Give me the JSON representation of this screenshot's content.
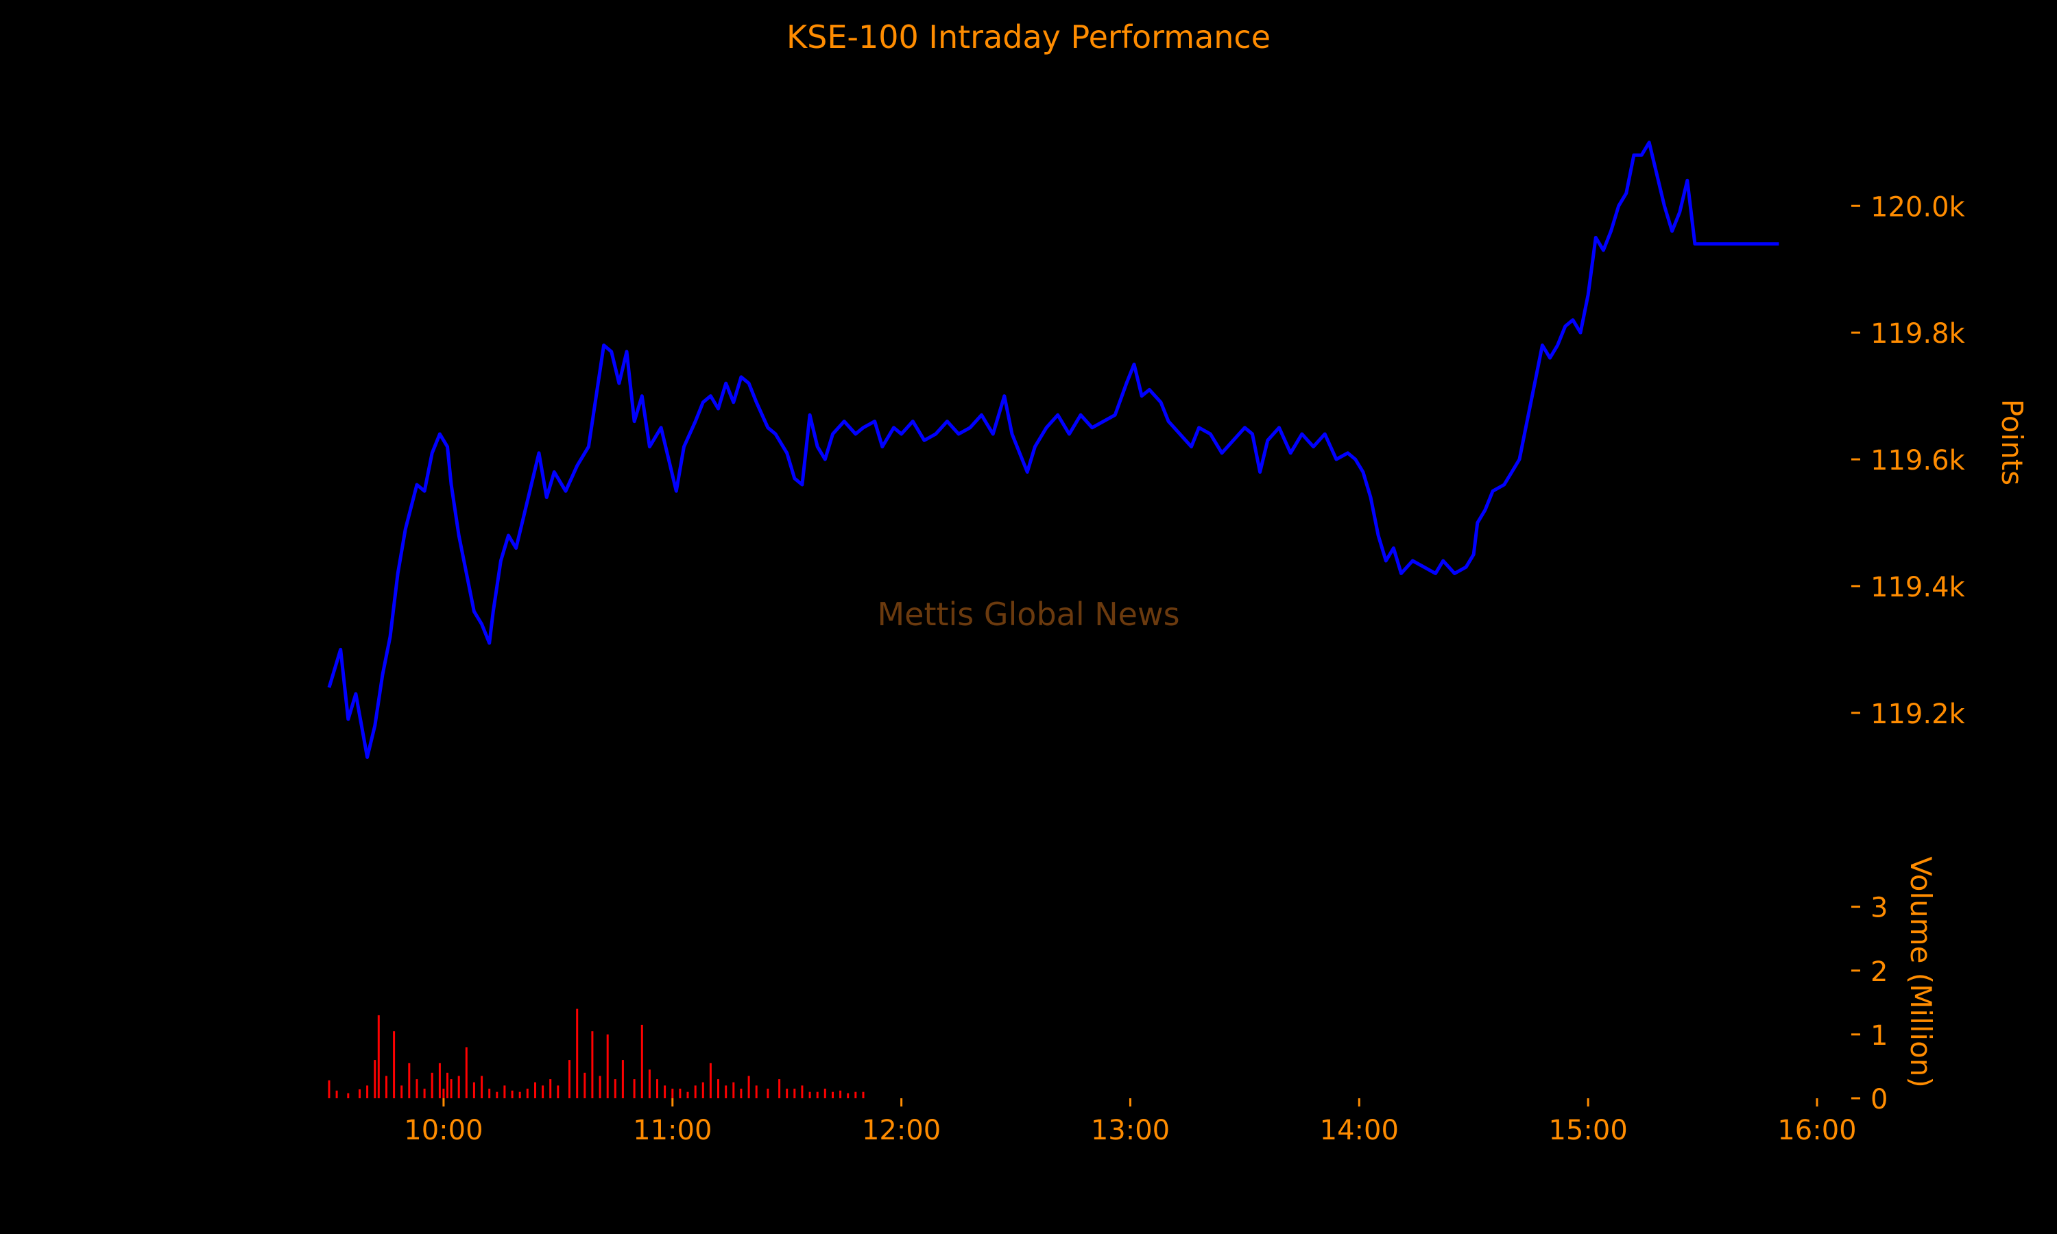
{
  "chart_data": [
    {
      "type": "line",
      "title": "KSE-100 Intraday Performance",
      "watermark": "Mettis Global News",
      "xlabel": "",
      "ylabel": "Points",
      "ylim": [
        119070,
        120195
      ],
      "y_ticks": [
        119200,
        119400,
        119600,
        119800,
        120000
      ],
      "y_tick_labels": [
        "119.2k",
        "119.4k",
        "119.6k",
        "119.8k",
        "120.0k"
      ],
      "y_axis_side": "right",
      "grid": false,
      "series": [
        {
          "color": "#0000FF",
          "points": [
            [
              "09:30",
              119240
            ],
            [
              "09:33",
              119300
            ],
            [
              "09:35",
              119190
            ],
            [
              "09:37",
              119230
            ],
            [
              "09:40",
              119130
            ],
            [
              "09:42",
              119180
            ],
            [
              "09:44",
              119260
            ],
            [
              "09:46",
              119320
            ],
            [
              "09:48",
              119420
            ],
            [
              "09:50",
              119490
            ],
            [
              "09:53",
              119560
            ],
            [
              "09:55",
              119550
            ],
            [
              "09:57",
              119610
            ],
            [
              "09:59",
              119640
            ],
            [
              "10:01",
              119620
            ],
            [
              "10:02",
              119560
            ],
            [
              "10:04",
              119480
            ],
            [
              "10:06",
              119420
            ],
            [
              "10:08",
              119360
            ],
            [
              "10:10",
              119340
            ],
            [
              "10:12",
              119310
            ],
            [
              "10:13",
              119360
            ],
            [
              "10:15",
              119440
            ],
            [
              "10:17",
              119480
            ],
            [
              "10:19",
              119460
            ],
            [
              "10:21",
              119510
            ],
            [
              "10:23",
              119560
            ],
            [
              "10:25",
              119610
            ],
            [
              "10:27",
              119540
            ],
            [
              "10:29",
              119580
            ],
            [
              "10:32",
              119550
            ],
            [
              "10:35",
              119590
            ],
            [
              "10:38",
              119620
            ],
            [
              "10:40",
              119700
            ],
            [
              "10:42",
              119780
            ],
            [
              "10:44",
              119770
            ],
            [
              "10:46",
              119720
            ],
            [
              "10:48",
              119770
            ],
            [
              "10:50",
              119660
            ],
            [
              "10:52",
              119700
            ],
            [
              "10:54",
              119620
            ],
            [
              "10:57",
              119650
            ],
            [
              "10:59",
              119600
            ],
            [
              "11:01",
              119550
            ],
            [
              "11:03",
              119620
            ],
            [
              "11:06",
              119660
            ],
            [
              "11:08",
              119690
            ],
            [
              "11:10",
              119700
            ],
            [
              "11:12",
              119680
            ],
            [
              "11:14",
              119720
            ],
            [
              "11:16",
              119690
            ],
            [
              "11:18",
              119730
            ],
            [
              "11:20",
              119720
            ],
            [
              "11:22",
              119690
            ],
            [
              "11:25",
              119650
            ],
            [
              "11:27",
              119640
            ],
            [
              "11:30",
              119610
            ],
            [
              "11:32",
              119570
            ],
            [
              "11:34",
              119560
            ],
            [
              "11:36",
              119670
            ],
            [
              "11:38",
              119620
            ],
            [
              "11:40",
              119600
            ],
            [
              "11:42",
              119640
            ],
            [
              "11:45",
              119660
            ],
            [
              "11:48",
              119640
            ],
            [
              "11:50",
              119650
            ],
            [
              "11:53",
              119660
            ],
            [
              "11:55",
              119620
            ],
            [
              "11:58",
              119650
            ],
            [
              "12:00",
              119640
            ],
            [
              "12:03",
              119660
            ],
            [
              "12:06",
              119630
            ],
            [
              "12:09",
              119640
            ],
            [
              "12:12",
              119660
            ],
            [
              "12:15",
              119640
            ],
            [
              "12:18",
              119650
            ],
            [
              "12:21",
              119670
            ],
            [
              "12:24",
              119640
            ],
            [
              "12:27",
              119700
            ],
            [
              "12:29",
              119640
            ],
            [
              "12:31",
              119610
            ],
            [
              "12:33",
              119580
            ],
            [
              "12:35",
              119620
            ],
            [
              "12:38",
              119650
            ],
            [
              "12:41",
              119670
            ],
            [
              "12:44",
              119640
            ],
            [
              "12:47",
              119670
            ],
            [
              "12:50",
              119650
            ],
            [
              "12:53",
              119660
            ],
            [
              "12:56",
              119670
            ],
            [
              "12:59",
              119720
            ],
            [
              "13:01",
              119750
            ],
            [
              "13:03",
              119700
            ],
            [
              "13:05",
              119710
            ],
            [
              "13:08",
              119690
            ],
            [
              "13:10",
              119660
            ],
            [
              "13:13",
              119640
            ],
            [
              "13:16",
              119620
            ],
            [
              "13:18",
              119650
            ],
            [
              "13:21",
              119640
            ],
            [
              "13:24",
              119610
            ],
            [
              "13:27",
              119630
            ],
            [
              "13:30",
              119650
            ],
            [
              "13:32",
              119640
            ],
            [
              "13:34",
              119580
            ],
            [
              "13:36",
              119630
            ],
            [
              "13:39",
              119650
            ],
            [
              "13:42",
              119610
            ],
            [
              "13:45",
              119640
            ],
            [
              "13:48",
              119620
            ],
            [
              "13:51",
              119640
            ],
            [
              "13:54",
              119600
            ],
            [
              "13:57",
              119610
            ],
            [
              "13:59",
              119600
            ],
            [
              "14:01",
              119580
            ],
            [
              "14:03",
              119540
            ],
            [
              "14:05",
              119480
            ],
            [
              "14:07",
              119440
            ],
            [
              "14:09",
              119460
            ],
            [
              "14:11",
              119420
            ],
            [
              "14:14",
              119440
            ],
            [
              "14:17",
              119430
            ],
            [
              "14:20",
              119420
            ],
            [
              "14:22",
              119440
            ],
            [
              "14:25",
              119420
            ],
            [
              "14:28",
              119430
            ],
            [
              "14:30",
              119450
            ],
            [
              "14:31",
              119500
            ],
            [
              "14:33",
              119520
            ],
            [
              "14:35",
              119550
            ],
            [
              "14:38",
              119560
            ],
            [
              "14:40",
              119580
            ],
            [
              "14:42",
              119600
            ],
            [
              "14:44",
              119660
            ],
            [
              "14:46",
              119720
            ],
            [
              "14:48",
              119780
            ],
            [
              "14:50",
              119760
            ],
            [
              "14:52",
              119780
            ],
            [
              "14:54",
              119810
            ],
            [
              "14:56",
              119820
            ],
            [
              "14:58",
              119800
            ],
            [
              "15:00",
              119860
            ],
            [
              "15:02",
              119950
            ],
            [
              "15:04",
              119930
            ],
            [
              "15:06",
              119960
            ],
            [
              "15:08",
              120000
            ],
            [
              "15:10",
              120020
            ],
            [
              "15:12",
              120080
            ],
            [
              "15:14",
              120080
            ],
            [
              "15:16",
              120100
            ],
            [
              "15:18",
              120050
            ],
            [
              "15:20",
              120000
            ],
            [
              "15:22",
              119960
            ],
            [
              "15:24",
              119990
            ],
            [
              "15:26",
              120040
            ],
            [
              "15:28",
              119940
            ],
            [
              "15:31",
              119940
            ],
            [
              "15:50",
              119940
            ]
          ]
        }
      ]
    },
    {
      "type": "bar",
      "xlabel": "",
      "ylabel": "Volume (Million)",
      "ylim": [
        0,
        3.78
      ],
      "y_ticks": [
        0,
        1,
        2,
        3
      ],
      "y_tick_labels": [
        "0",
        "1",
        "2",
        "3"
      ],
      "y_axis_side": "right",
      "x_ticks": [
        "10:00",
        "11:00",
        "12:00",
        "13:00",
        "14:00",
        "15:00",
        "16:00"
      ],
      "xlim": [
        "09:30",
        "16:00"
      ],
      "grid": false,
      "series": [
        {
          "color": "#FF0000",
          "bars": [
            [
              "09:30",
              0.28
            ],
            [
              "09:32",
              0.12
            ],
            [
              "09:35",
              0.08
            ],
            [
              "09:38",
              0.14
            ],
            [
              "09:40",
              0.2
            ],
            [
              "09:42",
              0.6
            ],
            [
              "09:43",
              1.3
            ],
            [
              "09:45",
              0.35
            ],
            [
              "09:47",
              1.05
            ],
            [
              "09:49",
              0.2
            ],
            [
              "09:51",
              0.55
            ],
            [
              "09:53",
              0.3
            ],
            [
              "09:55",
              0.15
            ],
            [
              "09:57",
              0.4
            ],
            [
              "09:59",
              0.55
            ],
            [
              "10:00",
              0.15
            ],
            [
              "10:01",
              0.4
            ],
            [
              "10:02",
              0.3
            ],
            [
              "10:04",
              0.35
            ],
            [
              "10:06",
              0.8
            ],
            [
              "10:08",
              0.25
            ],
            [
              "10:10",
              0.35
            ],
            [
              "10:12",
              0.15
            ],
            [
              "10:14",
              0.1
            ],
            [
              "10:16",
              0.2
            ],
            [
              "10:18",
              0.12
            ],
            [
              "10:20",
              0.1
            ],
            [
              "10:22",
              0.15
            ],
            [
              "10:24",
              0.25
            ],
            [
              "10:26",
              0.2
            ],
            [
              "10:28",
              0.3
            ],
            [
              "10:30",
              0.2
            ],
            [
              "10:33",
              0.6
            ],
            [
              "10:35",
              1.4
            ],
            [
              "10:37",
              0.4
            ],
            [
              "10:39",
              1.05
            ],
            [
              "10:41",
              0.35
            ],
            [
              "10:43",
              1.0
            ],
            [
              "10:45",
              0.3
            ],
            [
              "10:47",
              0.6
            ],
            [
              "10:50",
              0.3
            ],
            [
              "10:52",
              1.15
            ],
            [
              "10:54",
              0.45
            ],
            [
              "10:56",
              0.3
            ],
            [
              "10:58",
              0.2
            ],
            [
              "11:00",
              0.15
            ],
            [
              "11:02",
              0.15
            ],
            [
              "11:04",
              0.1
            ],
            [
              "11:06",
              0.2
            ],
            [
              "11:08",
              0.25
            ],
            [
              "11:10",
              0.55
            ],
            [
              "11:12",
              0.3
            ],
            [
              "11:14",
              0.2
            ],
            [
              "11:16",
              0.25
            ],
            [
              "11:18",
              0.15
            ],
            [
              "11:20",
              0.35
            ],
            [
              "11:22",
              0.2
            ],
            [
              "11:25",
              0.15
            ],
            [
              "11:28",
              0.3
            ],
            [
              "11:30",
              0.15
            ],
            [
              "11:32",
              0.15
            ],
            [
              "11:34",
              0.2
            ],
            [
              "11:36",
              0.1
            ],
            [
              "11:38",
              0.1
            ],
            [
              "11:40",
              0.15
            ],
            [
              "11:42",
              0.1
            ],
            [
              "11:44",
              0.12
            ],
            [
              "11:46",
              0.08
            ],
            [
              "11:48",
              0.1
            ],
            [
              "11:50",
              0.1
            ]
          ]
        }
      ]
    }
  ]
}
